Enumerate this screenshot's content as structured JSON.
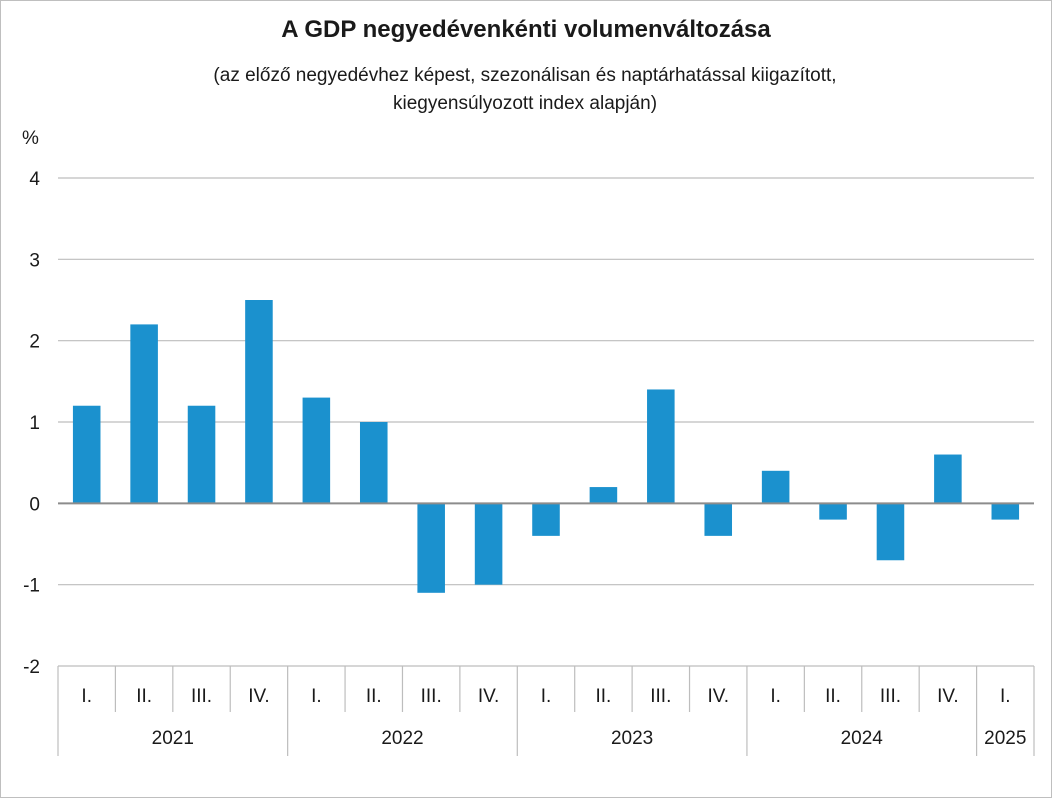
{
  "chart_data": {
    "type": "bar",
    "title": "A GDP negyedévenkénti volumenváltozása",
    "subtitle_line1": "(az előző negyedévhez képest, szezonálisan és naptárhatással kiigazított,",
    "subtitle_line2": "kiegyensúlyozott index alapján)",
    "ylabel": "%",
    "ylim": [
      -2,
      4
    ],
    "yticks": [
      4,
      3,
      2,
      1,
      0,
      -1,
      -2
    ],
    "grid": true,
    "color": "#1B91CE",
    "categories": [
      "I.",
      "II.",
      "III.",
      "IV.",
      "I.",
      "II.",
      "III.",
      "IV.",
      "I.",
      "II.",
      "III.",
      "IV.",
      "I.",
      "II.",
      "III.",
      "IV.",
      "I."
    ],
    "years": [
      {
        "label": "2021",
        "count": 4
      },
      {
        "label": "2022",
        "count": 4
      },
      {
        "label": "2023",
        "count": 4
      },
      {
        "label": "2024",
        "count": 4
      },
      {
        "label": "2025",
        "count": 1
      }
    ],
    "values": [
      1.2,
      2.2,
      1.2,
      2.5,
      1.3,
      1.0,
      -1.1,
      -1.0,
      -0.4,
      0.2,
      1.4,
      -0.4,
      0.4,
      -0.2,
      -0.7,
      0.6,
      -0.2
    ]
  }
}
